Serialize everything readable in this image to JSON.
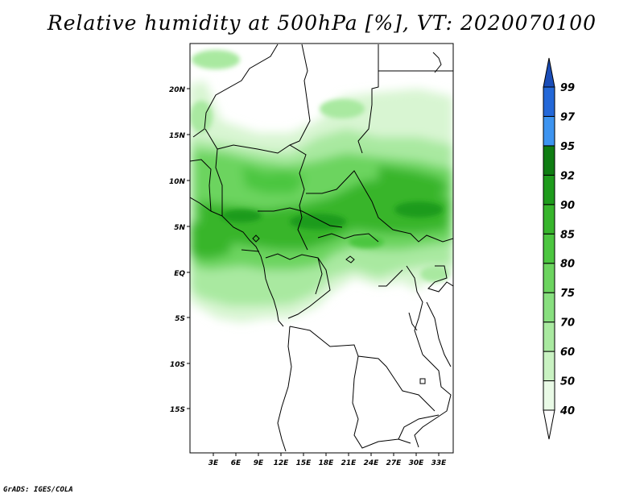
{
  "title": "Relative humidity at 500hPa [%], VT: 2020070100",
  "credit": "GrADS: IGES/COLA",
  "map": {
    "lat_ticks": [
      "20N",
      "15N",
      "10N",
      "5N",
      "EQ",
      "5S",
      "10S",
      "15S"
    ],
    "lon_ticks": [
      "3E",
      "6E",
      "9E",
      "12E",
      "15E",
      "18E",
      "21E",
      "24E",
      "27E",
      "30E",
      "33E"
    ]
  },
  "colorbar": {
    "levels": [
      "40",
      "50",
      "60",
      "70",
      "75",
      "80",
      "85",
      "90",
      "92",
      "95",
      "97",
      "99"
    ],
    "colors": [
      "#ffffff",
      "#e9fae6",
      "#c9f2c2",
      "#a9e9a0",
      "#88df7f",
      "#6cd45f",
      "#4cc640",
      "#37b52c",
      "#1e9b1c",
      "#0f7d12",
      "#3d94f0",
      "#2468d8",
      "#1a4db8"
    ]
  }
}
